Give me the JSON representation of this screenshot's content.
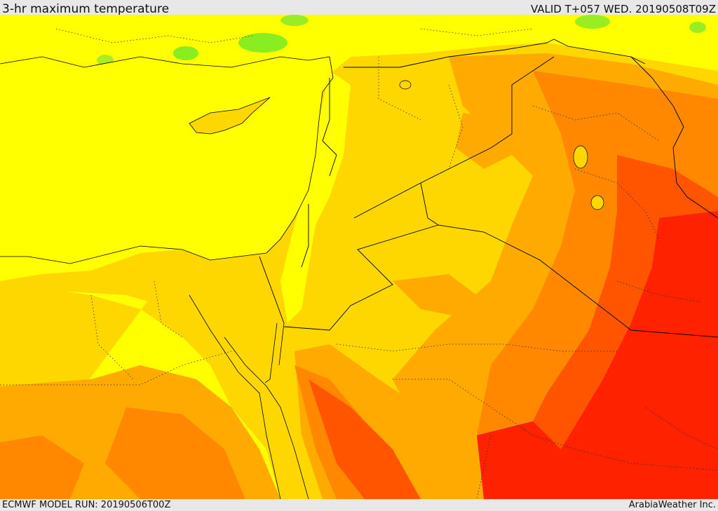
{
  "header": {
    "title": "3-hr maximum temperature",
    "valid": "VALID T+057 WED. 20190508T09Z"
  },
  "footer": {
    "model_run": "ECMWF MODEL RUN: 20190506T00Z",
    "provider": "ArabiaWeather Inc."
  },
  "palette": {
    "sea": "#ffff00",
    "green": "#66ee22",
    "yellow_green": "#c8ff00",
    "yellow": "#ffff00",
    "gold": "#ffd700",
    "orange_light": "#ffaa00",
    "orange": "#ff8800",
    "red_orange": "#ff5500",
    "red": "#ff2200"
  }
}
